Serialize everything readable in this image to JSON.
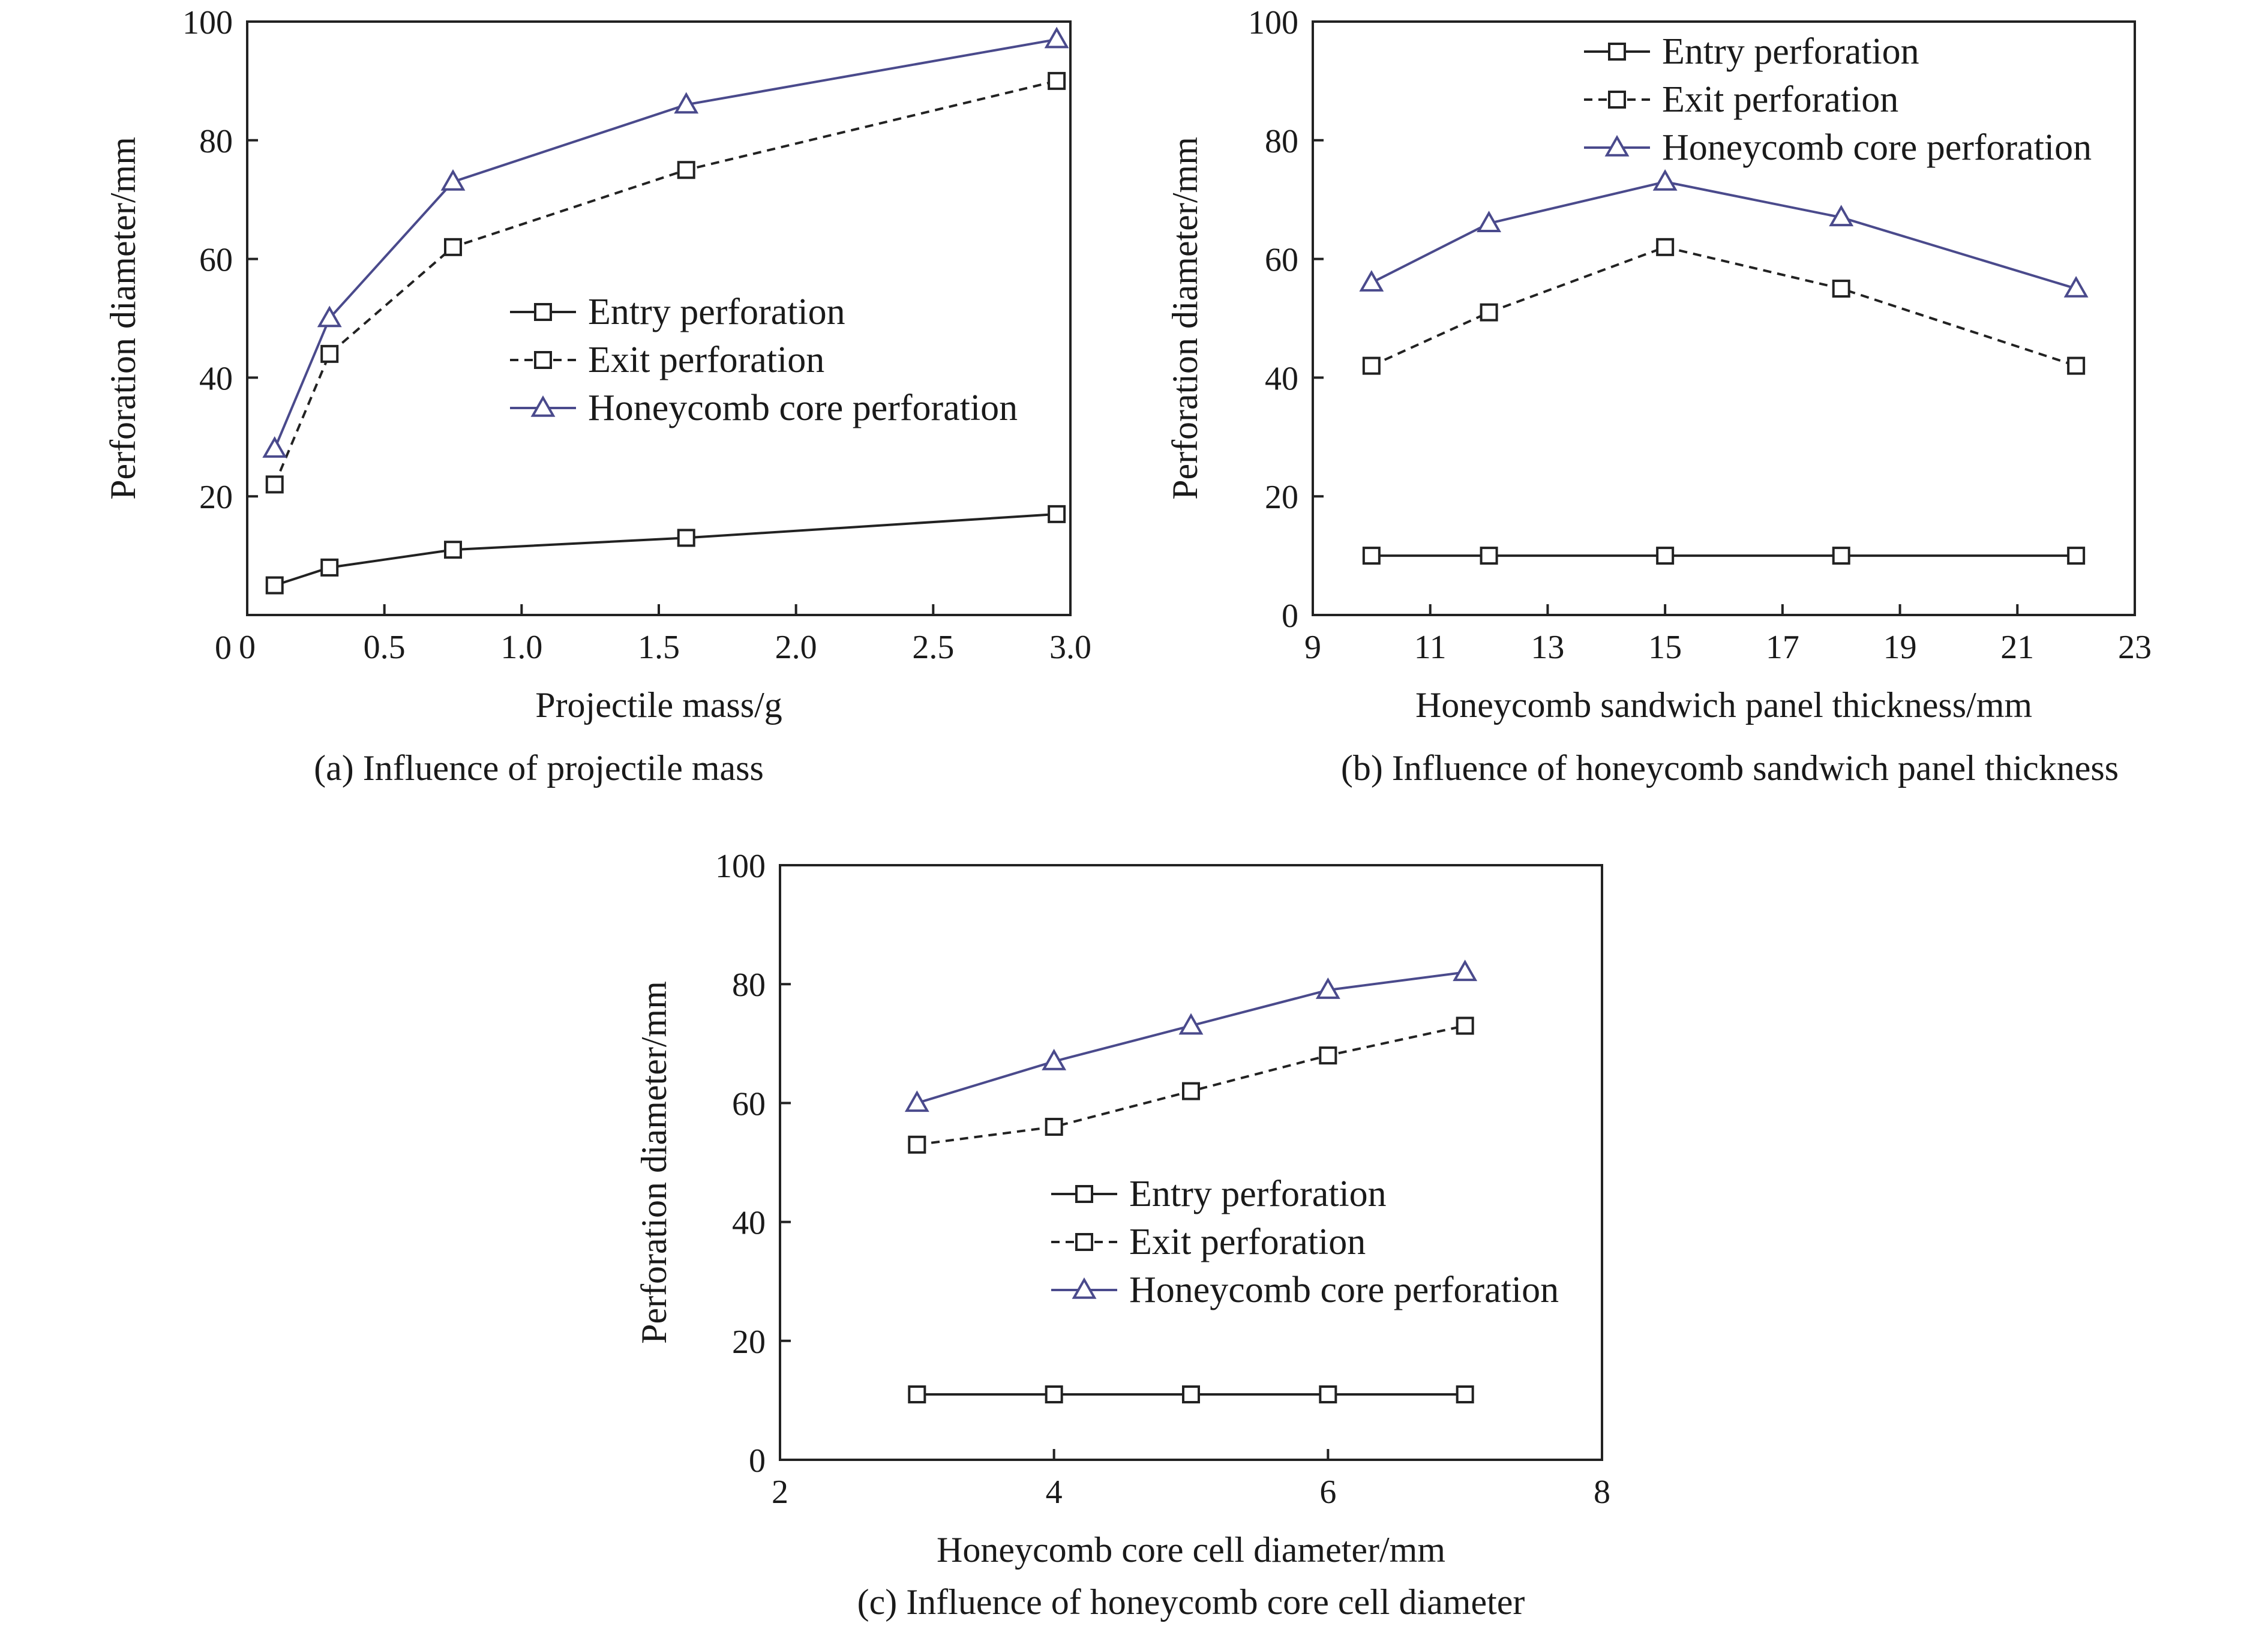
{
  "chart_data": [
    {
      "type": "line",
      "caption": "(a) Influence of projectile mass",
      "xlabel": "Projectile mass/g",
      "ylabel": "Perforation diameter/mm",
      "xlim": [
        0,
        3.0
      ],
      "ylim": [
        0,
        100
      ],
      "xticks": [
        0,
        0.5,
        1.0,
        1.5,
        2.0,
        2.5,
        3.0
      ],
      "xtick_labels": [
        "0",
        "0.5",
        "1.0",
        "1.5",
        "2.0",
        "2.5",
        "3.0"
      ],
      "yticks": [
        20,
        40,
        60,
        80,
        100
      ],
      "ytick_labels": [
        "20",
        "40",
        "60",
        "80",
        "100"
      ],
      "legend_position": "middle-right",
      "x": [
        0.1,
        0.3,
        0.75,
        1.6,
        2.95
      ],
      "series": [
        {
          "name": "Entry perforation",
          "style": "solid",
          "marker": "square",
          "color": "#222222",
          "values": [
            5,
            8,
            11,
            13,
            17
          ]
        },
        {
          "name": "Exit perforation",
          "style": "dashed",
          "marker": "square",
          "color": "#222222",
          "values": [
            22,
            44,
            62,
            75,
            90
          ]
        },
        {
          "name": "Honeycomb core perforation",
          "style": "solid",
          "marker": "triangle",
          "color": "#4a4a8c",
          "values": [
            28,
            50,
            73,
            86,
            97
          ]
        }
      ]
    },
    {
      "type": "line",
      "caption": "(b) Influence of honeycomb sandwich panel thickness",
      "xlabel": "Honeycomb sandwich panel thickness/mm",
      "ylabel": "Perforation diameter/mm",
      "xlim": [
        9,
        23
      ],
      "ylim": [
        0,
        100
      ],
      "xticks": [
        9,
        11,
        13,
        15,
        17,
        19,
        21,
        23
      ],
      "xtick_labels": [
        "9",
        "11",
        "13",
        "15",
        "17",
        "19",
        "21",
        "23"
      ],
      "yticks": [
        0,
        20,
        40,
        60,
        80,
        100
      ],
      "ytick_labels": [
        "0",
        "20",
        "40",
        "60",
        "80",
        "100"
      ],
      "legend_position": "top-right",
      "x": [
        10,
        12,
        15,
        18,
        22
      ],
      "series": [
        {
          "name": "Entry perforation",
          "style": "solid",
          "marker": "square",
          "color": "#222222",
          "values": [
            10,
            10,
            10,
            10,
            10
          ]
        },
        {
          "name": "Exit perforation",
          "style": "dashed",
          "marker": "square",
          "color": "#222222",
          "values": [
            42,
            51,
            62,
            55,
            42
          ]
        },
        {
          "name": "Honeycomb core perforation",
          "style": "solid",
          "marker": "triangle",
          "color": "#4a4a8c",
          "values": [
            56,
            66,
            73,
            67,
            55
          ]
        }
      ]
    },
    {
      "type": "line",
      "caption": "(c) Influence of honeycomb core cell diameter",
      "xlabel": "Honeycomb core cell diameter/mm",
      "ylabel": "Perforation diameter/mm",
      "xlim": [
        2,
        8
      ],
      "ylim": [
        0,
        100
      ],
      "xticks": [
        2,
        4,
        6,
        8
      ],
      "xtick_labels": [
        "2",
        "4",
        "6",
        "8"
      ],
      "yticks": [
        0,
        20,
        40,
        60,
        80,
        100
      ],
      "ytick_labels": [
        "0",
        "20",
        "40",
        "60",
        "80",
        "100"
      ],
      "legend_position": "middle-right",
      "x": [
        3,
        4,
        5,
        6,
        7
      ],
      "series": [
        {
          "name": "Entry perforation",
          "style": "solid",
          "marker": "square",
          "color": "#222222",
          "values": [
            11,
            11,
            11,
            11,
            11
          ]
        },
        {
          "name": "Exit perforation",
          "style": "dashed",
          "marker": "square",
          "color": "#222222",
          "values": [
            53,
            56,
            62,
            68,
            73
          ]
        },
        {
          "name": "Honeycomb core perforation",
          "style": "solid",
          "marker": "triangle",
          "color": "#4a4a8c",
          "values": [
            60,
            67,
            73,
            79,
            82
          ]
        }
      ]
    }
  ],
  "origin_label_a": "0"
}
